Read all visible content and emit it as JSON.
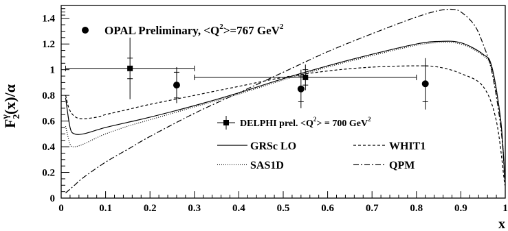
{
  "chart_data": {
    "type": "line",
    "title": "",
    "xlabel": "x",
    "ylabel": "F2γ(x)/α",
    "ylabel_parts": {
      "base": "F",
      "sub": "2",
      "sup": "γ",
      "tail": "(x)/α"
    },
    "xlim": [
      0,
      1
    ],
    "ylim": [
      0,
      1.5
    ],
    "x_ticks": [
      0,
      0.1,
      0.2,
      0.3,
      0.4,
      0.5,
      0.6,
      0.7,
      0.8,
      0.9,
      1
    ],
    "y_ticks": [
      0,
      0.2,
      0.4,
      0.6,
      0.8,
      1,
      1.2,
      1.4
    ],
    "grid": false,
    "legend_position": "bottom-right",
    "annotation": {
      "marker": "filled-circle",
      "text": "OPAL Preliminary, <Q",
      "sup": "2",
      "text2": ">=767 GeV",
      "sup2": "2"
    },
    "point_series": [
      {
        "name": "OPAL Preliminary, <Q2>=767 GeV2",
        "marker": "circle",
        "points": [
          {
            "x": 0.26,
            "y": 0.88,
            "y_err_stat": 0.1,
            "y_err_tot": 0.14,
            "x_err": 0
          },
          {
            "x": 0.54,
            "y": 0.85,
            "y_err_stat": 0.1,
            "y_err_tot": 0.15,
            "x_err": 0
          },
          {
            "x": 0.82,
            "y": 0.89,
            "y_err_stat": 0.14,
            "y_err_tot": 0.2,
            "x_err": 0
          }
        ]
      },
      {
        "name": "DELPHI prel. <Q2> = 700 GeV2",
        "marker": "square",
        "points": [
          {
            "x": 0.155,
            "y": 1.01,
            "y_err_stat": 0.08,
            "y_err_tot": 0.24,
            "x_lo": 0.01,
            "x_hi": 0.3
          },
          {
            "x": 0.55,
            "y": 0.94,
            "y_err_stat": 0.06,
            "y_err_tot": 0.1,
            "x_lo": 0.3,
            "x_hi": 0.8
          }
        ]
      }
    ],
    "series": [
      {
        "name": "GRSc LO",
        "dash": "solid",
        "x": [
          0.01,
          0.02,
          0.03,
          0.05,
          0.08,
          0.1,
          0.15,
          0.2,
          0.3,
          0.4,
          0.5,
          0.6,
          0.7,
          0.8,
          0.85,
          0.9,
          0.95,
          0.97,
          0.99,
          0.999
        ],
        "y": [
          0.78,
          0.55,
          0.5,
          0.5,
          0.53,
          0.55,
          0.59,
          0.63,
          0.72,
          0.82,
          0.93,
          1.03,
          1.12,
          1.2,
          1.22,
          1.21,
          1.12,
          1.02,
          0.6,
          0.15
        ]
      },
      {
        "name": "WHIT1",
        "dash": "dashed",
        "x": [
          0.01,
          0.02,
          0.04,
          0.08,
          0.1,
          0.15,
          0.2,
          0.3,
          0.4,
          0.5,
          0.6,
          0.7,
          0.8,
          0.85,
          0.9,
          0.95,
          0.98,
          0.999
        ],
        "y": [
          0.8,
          0.68,
          0.62,
          0.63,
          0.65,
          0.69,
          0.73,
          0.8,
          0.87,
          0.94,
          0.99,
          1.02,
          1.03,
          1.02,
          0.97,
          0.87,
          0.6,
          0.1
        ]
      },
      {
        "name": "SAS1D",
        "dash": "dotted",
        "x": [
          0.01,
          0.02,
          0.03,
          0.05,
          0.08,
          0.1,
          0.15,
          0.2,
          0.3,
          0.4,
          0.5,
          0.6,
          0.7,
          0.8,
          0.85,
          0.9,
          0.95,
          0.97,
          0.99,
          0.999
        ],
        "y": [
          0.56,
          0.42,
          0.4,
          0.42,
          0.47,
          0.5,
          0.56,
          0.61,
          0.71,
          0.81,
          0.92,
          1.02,
          1.11,
          1.19,
          1.21,
          1.2,
          1.11,
          1.0,
          0.6,
          0.15
        ]
      },
      {
        "name": "QPM",
        "dash": "dashdot",
        "x": [
          0.01,
          0.03,
          0.05,
          0.1,
          0.15,
          0.2,
          0.3,
          0.4,
          0.5,
          0.6,
          0.7,
          0.8,
          0.85,
          0.88,
          0.9,
          0.93,
          0.95,
          0.97,
          0.99,
          0.999
        ],
        "y": [
          0.04,
          0.1,
          0.16,
          0.28,
          0.38,
          0.48,
          0.66,
          0.82,
          0.98,
          1.14,
          1.28,
          1.41,
          1.46,
          1.47,
          1.45,
          1.35,
          1.2,
          0.98,
          0.55,
          0.15
        ]
      }
    ],
    "legend": {
      "delphi": {
        "text": "DELPHI prel. <Q",
        "sup": "2",
        "text2": "> = 700 GeV",
        "sup2": "2"
      },
      "entries": [
        {
          "label": "GRSc LO",
          "dash": "solid"
        },
        {
          "label": "WHIT1",
          "dash": "dashed"
        },
        {
          "label": "SAS1D",
          "dash": "dotted"
        },
        {
          "label": "QPM",
          "dash": "dashdot"
        }
      ]
    }
  }
}
